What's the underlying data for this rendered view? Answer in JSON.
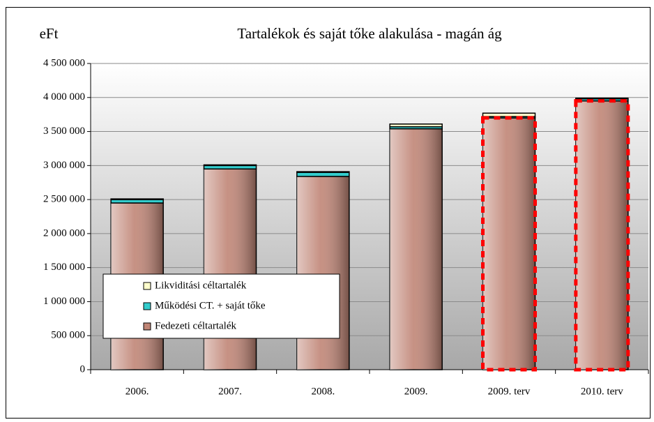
{
  "chart_data": {
    "type": "stacked_bar",
    "title": "Tartalékok és saját tőke alakulása - magán ág",
    "ylabel": "eFt",
    "categories": [
      "2006.",
      "2007.",
      "2008.",
      "2009.",
      "2009. terv",
      "2010. terv"
    ],
    "series": [
      {
        "name": "Fedezeti céltartalék",
        "color": "#c08576",
        "values": [
          2450000,
          2950000,
          2840000,
          3540000,
          3700000,
          3950000
        ]
      },
      {
        "name": "Működési CT. + saját tőke",
        "color": "#33cccc",
        "values": [
          50000,
          50000,
          60000,
          30000,
          20000,
          30000
        ]
      },
      {
        "name": "Likviditási céltartalék",
        "color": "#ffffcc",
        "values": [
          10000,
          10000,
          10000,
          40000,
          50000,
          10000
        ]
      }
    ],
    "highlight": [
      false,
      false,
      false,
      false,
      true,
      true
    ],
    "highlight_color": "#ff0000",
    "ylim": [
      0,
      4500000
    ],
    "yticks": [
      0,
      {
        "value": 500000,
        "label": "500 000"
      },
      {
        "value": 1000000,
        "label": "1 000 000"
      },
      {
        "value": 1500000,
        "label": "1 500 000"
      },
      {
        "value": 2000000,
        "label": "2 000 000"
      },
      {
        "value": 2500000,
        "label": "2 500 000"
      },
      {
        "value": 3000000,
        "label": "3 000 000"
      },
      {
        "value": 3500000,
        "label": "3 500 000"
      },
      {
        "value": 4000000,
        "label": "4 000 000"
      },
      {
        "value": 4500000,
        "label": "4 500 000"
      }
    ],
    "grid": true
  }
}
